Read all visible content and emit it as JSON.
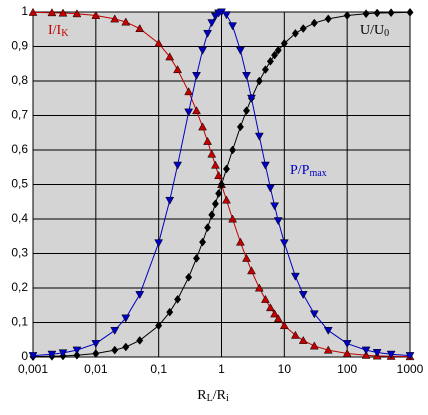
{
  "chart_data": {
    "type": "line",
    "xscale": "log",
    "xlim": [
      0.001,
      1000
    ],
    "ylim": [
      0,
      1
    ],
    "xticks": [
      {
        "value": 0.001,
        "label": "0,001"
      },
      {
        "value": 0.01,
        "label": "0,01"
      },
      {
        "value": 0.1,
        "label": "0,1"
      },
      1,
      10,
      100,
      1000
    ],
    "yticks": [
      0,
      {
        "value": 0.1,
        "label": "0,1"
      },
      {
        "value": 0.2,
        "label": "0,2"
      },
      {
        "value": 0.3,
        "label": "0,3"
      },
      {
        "value": 0.4,
        "label": "0,4"
      },
      {
        "value": 0.5,
        "label": "0,5"
      },
      {
        "value": 0.6,
        "label": "0,6"
      },
      {
        "value": 0.7,
        "label": "0,7"
      },
      {
        "value": 0.8,
        "label": "0,8"
      },
      {
        "value": 0.9,
        "label": "0,9"
      },
      1
    ],
    "grid": true,
    "background": "#d4d4d4",
    "xlabel": [
      "R",
      "L",
      "/R",
      "i"
    ],
    "x": [
      0.001,
      0.002,
      0.003,
      0.005,
      0.01,
      0.02,
      0.03,
      0.05,
      0.1,
      0.15,
      0.2,
      0.3,
      0.4,
      0.5,
      0.6,
      0.7,
      0.8,
      0.9,
      1,
      1.2,
      1.5,
      2,
      2.5,
      3,
      4,
      5,
      6,
      7,
      8,
      10,
      15,
      20,
      30,
      50,
      100,
      200,
      300,
      500,
      1000
    ],
    "series": [
      {
        "name": [
          "I/I",
          "K"
        ],
        "color": "#c00000",
        "marker": "triangle-up",
        "values": [
          0.999,
          0.998,
          0.997,
          0.995,
          0.99,
          0.98,
          0.971,
          0.952,
          0.909,
          0.87,
          0.833,
          0.769,
          0.714,
          0.667,
          0.625,
          0.588,
          0.556,
          0.526,
          0.5,
          0.455,
          0.4,
          0.333,
          0.286,
          0.25,
          0.2,
          0.167,
          0.143,
          0.125,
          0.111,
          0.091,
          0.063,
          0.048,
          0.032,
          0.02,
          0.01,
          0.005,
          0.003,
          0.002,
          0.001
        ]
      },
      {
        "name": [
          "U/U",
          "0"
        ],
        "color": "#000000",
        "marker": "diamond",
        "values": [
          0.001,
          0.002,
          0.003,
          0.005,
          0.01,
          0.02,
          0.029,
          0.048,
          0.091,
          0.13,
          0.167,
          0.231,
          0.286,
          0.333,
          0.375,
          0.412,
          0.444,
          0.474,
          0.5,
          0.545,
          0.6,
          0.667,
          0.714,
          0.75,
          0.8,
          0.833,
          0.857,
          0.875,
          0.889,
          0.909,
          0.938,
          0.952,
          0.968,
          0.98,
          0.99,
          0.995,
          0.997,
          0.998,
          0.999
        ]
      },
      {
        "name": [
          "P/P",
          "max"
        ],
        "color": "#0000c0",
        "marker": "triangle-down",
        "values": [
          0.004,
          0.008,
          0.012,
          0.02,
          0.039,
          0.077,
          0.113,
          0.181,
          0.331,
          0.454,
          0.556,
          0.71,
          0.816,
          0.889,
          0.938,
          0.969,
          0.988,
          0.997,
          1,
          0.992,
          0.96,
          0.889,
          0.816,
          0.75,
          0.64,
          0.556,
          0.49,
          0.438,
          0.395,
          0.331,
          0.234,
          0.181,
          0.125,
          0.077,
          0.039,
          0.02,
          0.013,
          0.008,
          0.004
        ]
      }
    ]
  }
}
